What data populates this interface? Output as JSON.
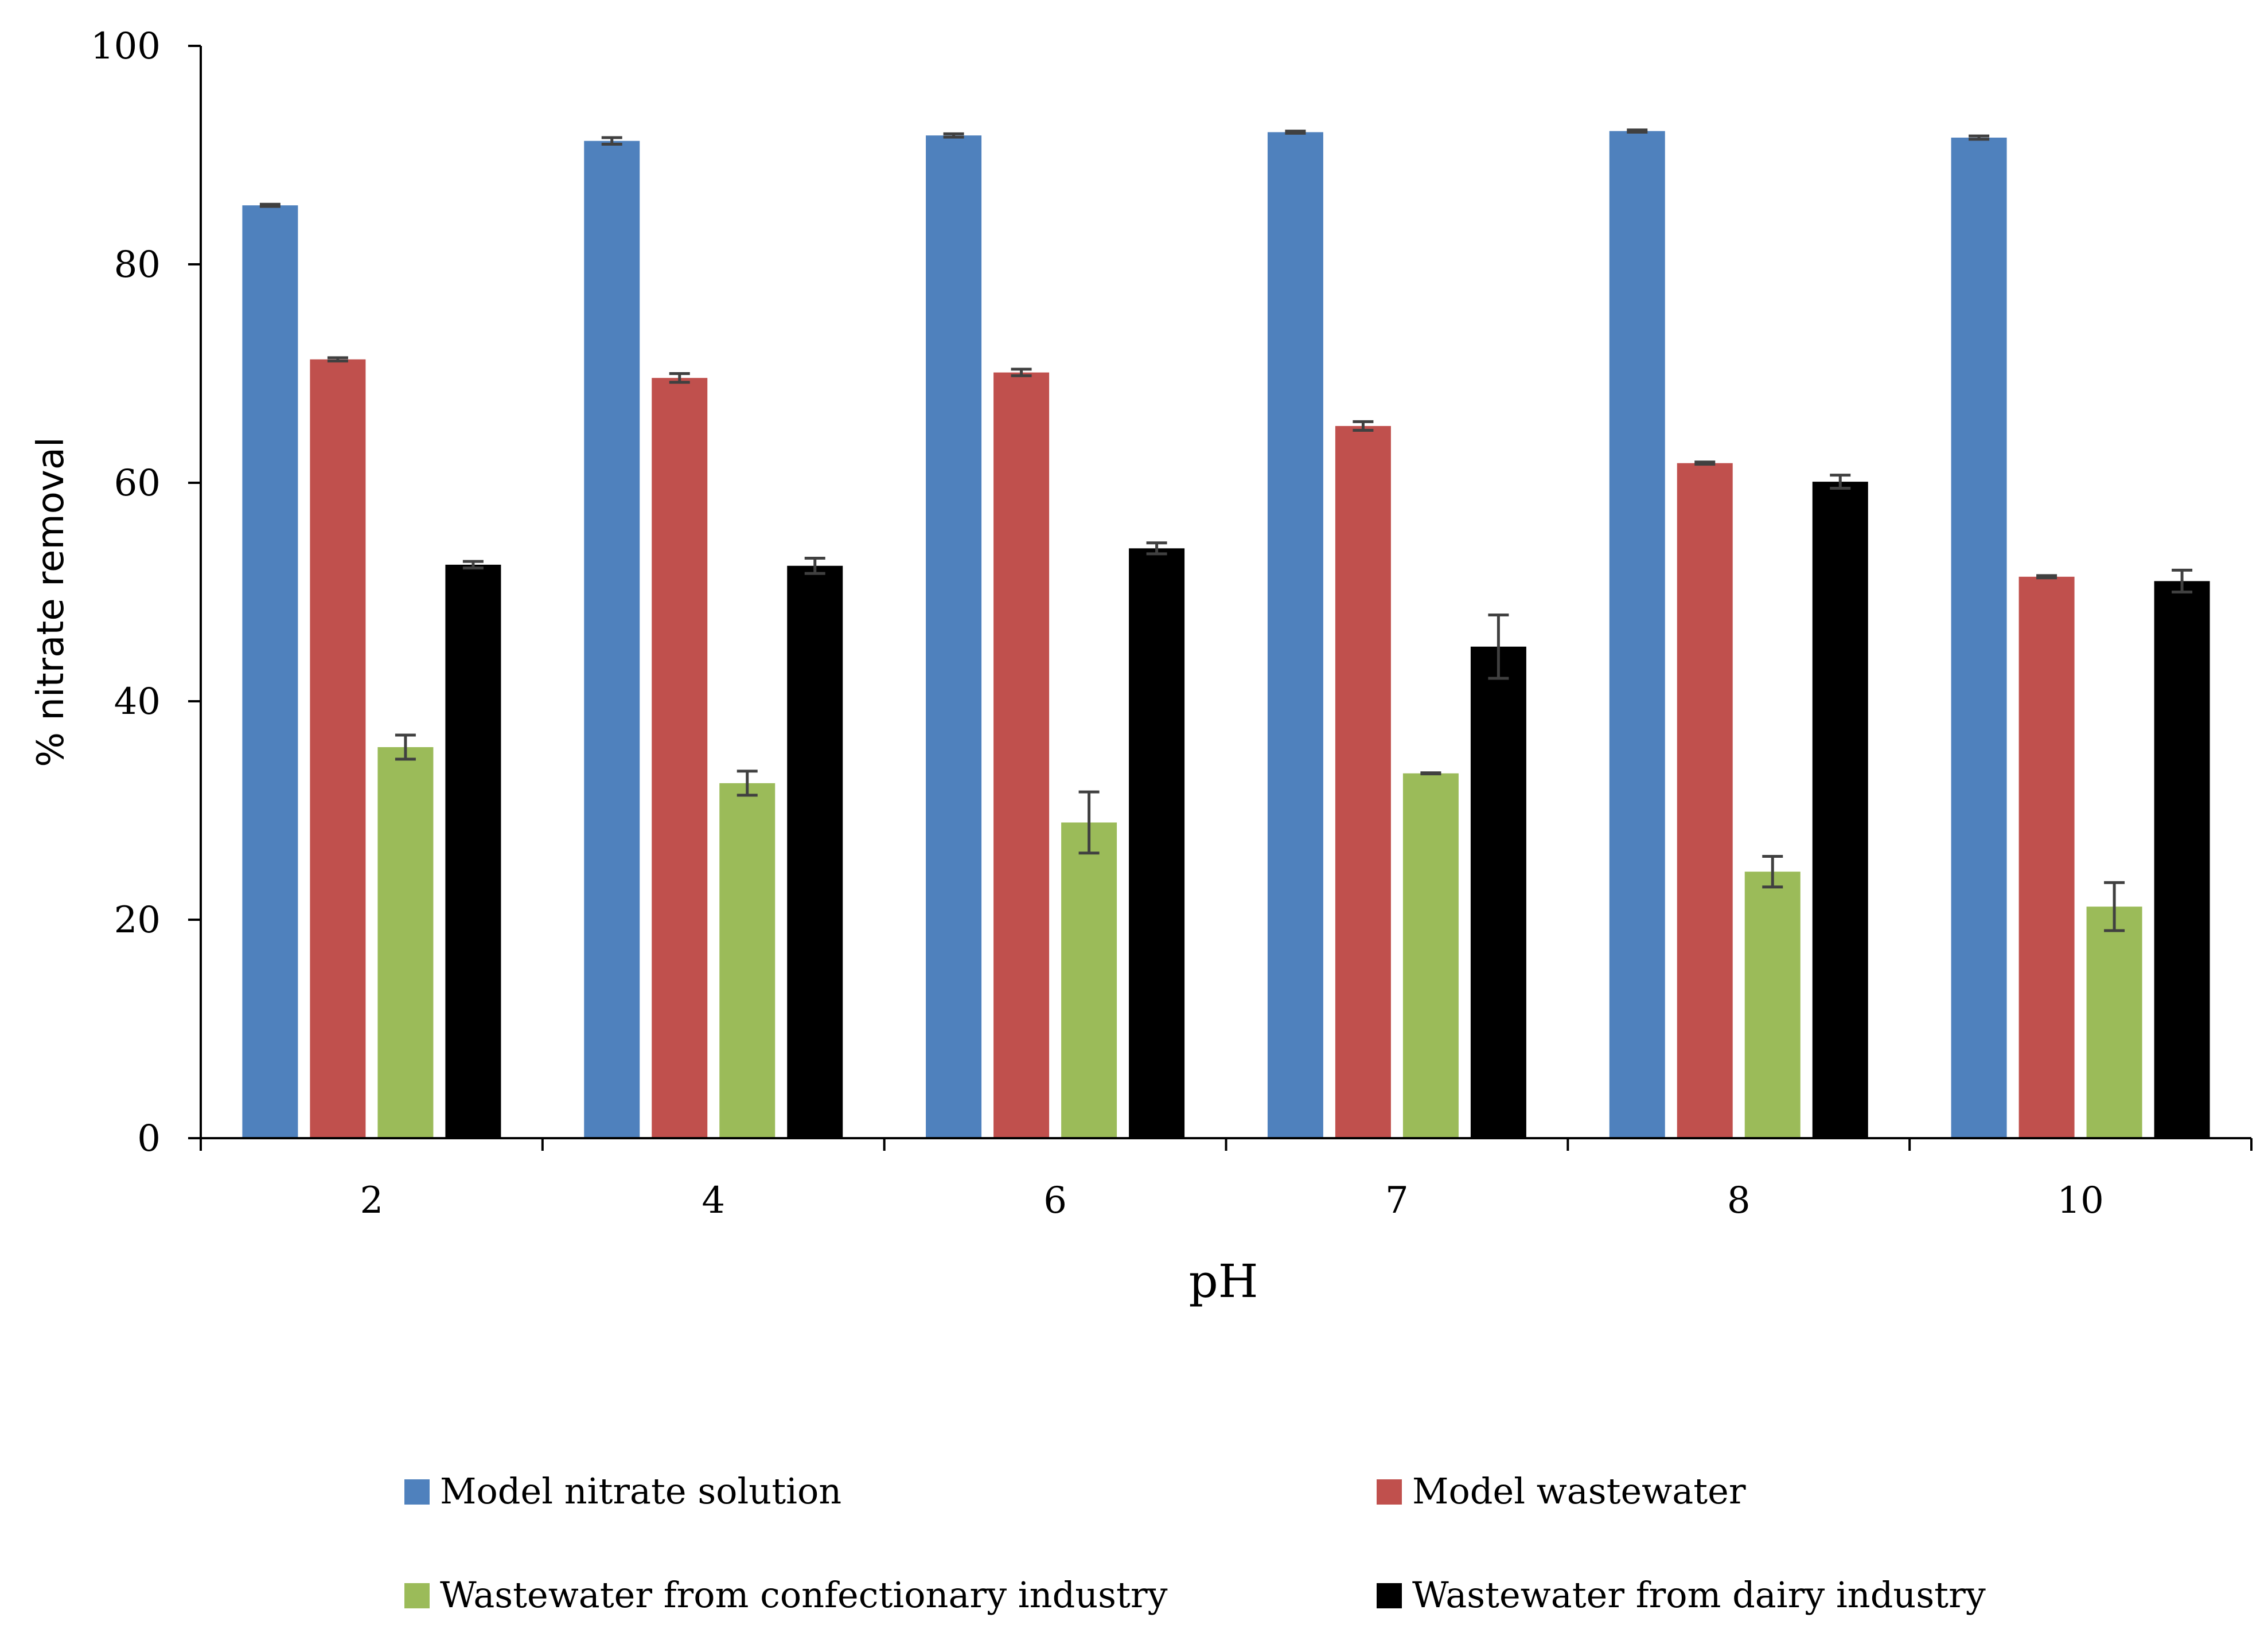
{
  "chart_data": {
    "type": "bar",
    "title": "",
    "xlabel": "pH",
    "ylabel": "% nitrate removal",
    "categories": [
      "2",
      "4",
      "6",
      "7",
      "8",
      "10"
    ],
    "ylim": [
      0,
      100
    ],
    "yticks": [
      0,
      20,
      40,
      60,
      80,
      100
    ],
    "grid": false,
    "legend_position": "bottom",
    "series": [
      {
        "name": "Model nitrate solution",
        "color": "#4F81BD",
        "values": [
          85.4,
          91.3,
          91.8,
          92.1,
          92.2,
          91.6
        ],
        "errors": [
          0.1,
          0.3,
          0.15,
          0.1,
          0.1,
          0.15
        ]
      },
      {
        "name": "Model wastewater",
        "color": "#C0504D",
        "values": [
          71.3,
          69.6,
          70.1,
          65.2,
          61.8,
          51.4
        ],
        "errors": [
          0.15,
          0.4,
          0.3,
          0.4,
          0.1,
          0.1
        ]
      },
      {
        "name": "Wastewater from confectionary industry",
        "color": "#9BBB59",
        "values": [
          35.8,
          32.5,
          28.9,
          33.4,
          24.4,
          21.2
        ],
        "errors": [
          1.1,
          1.1,
          2.8,
          0.05,
          1.4,
          2.2
        ]
      },
      {
        "name": "Wastewater from dairy industry",
        "color": "#000000",
        "values": [
          52.5,
          52.4,
          54.0,
          45.0,
          60.1,
          51.0
        ],
        "errors": [
          0.3,
          0.7,
          0.5,
          2.9,
          0.6,
          1.0
        ]
      }
    ]
  }
}
